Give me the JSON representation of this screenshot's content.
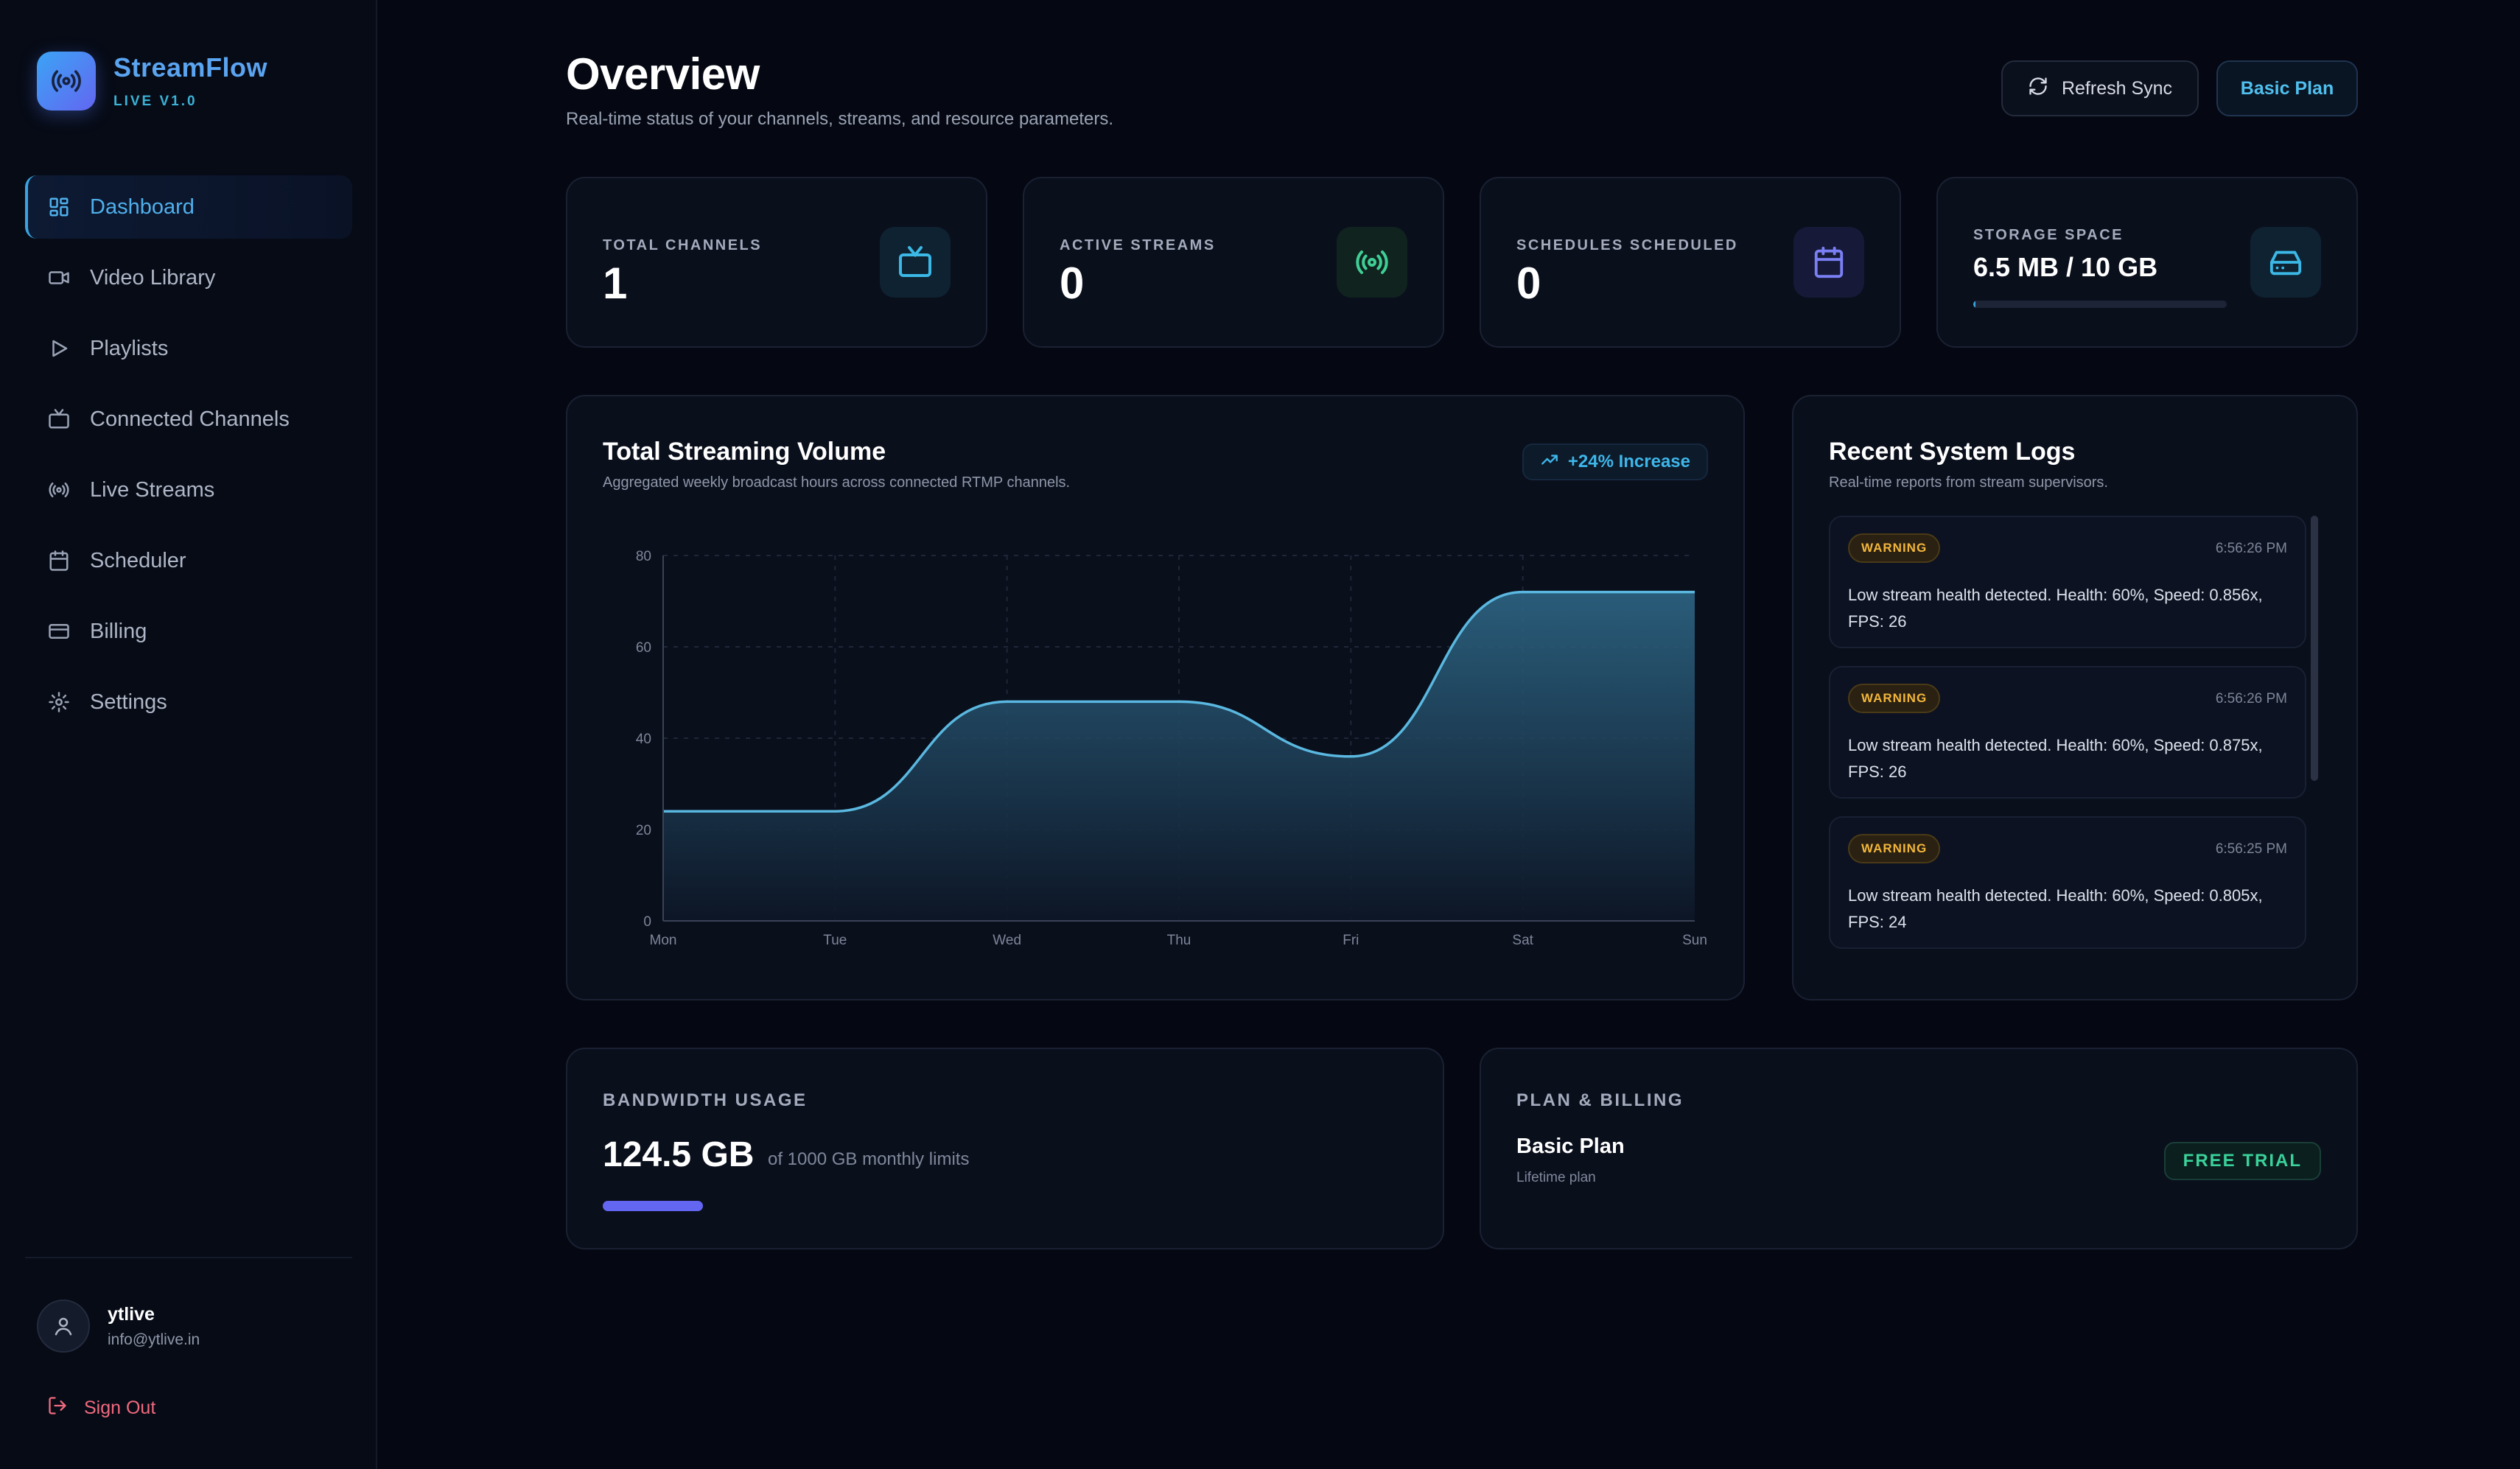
{
  "brand": {
    "name": "StreamFlow",
    "version": "LIVE V1.0",
    "logo_icon": "broadcast-icon"
  },
  "sidebar": {
    "items": [
      {
        "label": "Dashboard",
        "icon": "grid-icon",
        "active": true
      },
      {
        "label": "Video Library",
        "icon": "video-icon"
      },
      {
        "label": "Playlists",
        "icon": "play-icon"
      },
      {
        "label": "Connected Channels",
        "icon": "tv-icon"
      },
      {
        "label": "Live Streams",
        "icon": "broadcast-icon"
      },
      {
        "label": "Scheduler",
        "icon": "calendar-icon"
      },
      {
        "label": "Billing",
        "icon": "credit-card-icon"
      },
      {
        "label": "Settings",
        "icon": "gear-icon"
      }
    ],
    "user": {
      "name": "ytlive",
      "email": "info@ytlive.in"
    },
    "signout_label": "Sign Out"
  },
  "header": {
    "title": "Overview",
    "subtitle": "Real-time status of your channels, streams, and resource parameters.",
    "refresh_label": "Refresh Sync",
    "plan_label": "Basic Plan"
  },
  "stats": {
    "channels": {
      "label": "TOTAL CHANNELS",
      "value": "1"
    },
    "streams": {
      "label": "ACTIVE STREAMS",
      "value": "0"
    },
    "schedules": {
      "label": "SCHEDULES SCHEDULED",
      "value": "0"
    },
    "storage": {
      "label": "STORAGE SPACE",
      "value": "6.5 MB / 10 GB",
      "used_fraction": 0.0006
    }
  },
  "chart": {
    "title": "Total Streaming Volume",
    "subtitle": "Aggregated weekly broadcast hours across connected RTMP channels.",
    "badge": "+24% Increase"
  },
  "chart_data": {
    "type": "area",
    "title": "Total Streaming Volume",
    "categories": [
      "Mon",
      "Tue",
      "Wed",
      "Thu",
      "Fri",
      "Sat",
      "Sun"
    ],
    "values": [
      24,
      24,
      48,
      48,
      36,
      72,
      72
    ],
    "ylim": [
      0,
      80
    ],
    "yticks": [
      0,
      20,
      40,
      60,
      80
    ],
    "grid": true,
    "colors": {
      "line": "#5ab8e0",
      "fill_top": "#2f6a8a",
      "fill_bottom": "#0d1626"
    }
  },
  "logs": {
    "title": "Recent System Logs",
    "subtitle": "Real-time reports from stream supervisors.",
    "entries": [
      {
        "level": "WARNING",
        "time": "6:56:26 PM",
        "message": "Low stream health detected. Health: 60%, Speed: 0.856x, FPS: 26"
      },
      {
        "level": "WARNING",
        "time": "6:56:26 PM",
        "message": "Low stream health detected. Health: 60%, Speed: 0.875x, FPS: 26"
      },
      {
        "level": "WARNING",
        "time": "6:56:25 PM",
        "message": "Low stream health detected. Health: 60%, Speed: 0.805x, FPS: 24"
      }
    ]
  },
  "bandwidth": {
    "label": "BANDWIDTH USAGE",
    "value": "124.5 GB",
    "limit": "of 1000 GB monthly limits",
    "used_fraction": 0.1245
  },
  "plan": {
    "label": "PLAN & BILLING",
    "name": "Basic Plan",
    "sub": "Lifetime plan",
    "badge": "FREE TRIAL"
  }
}
